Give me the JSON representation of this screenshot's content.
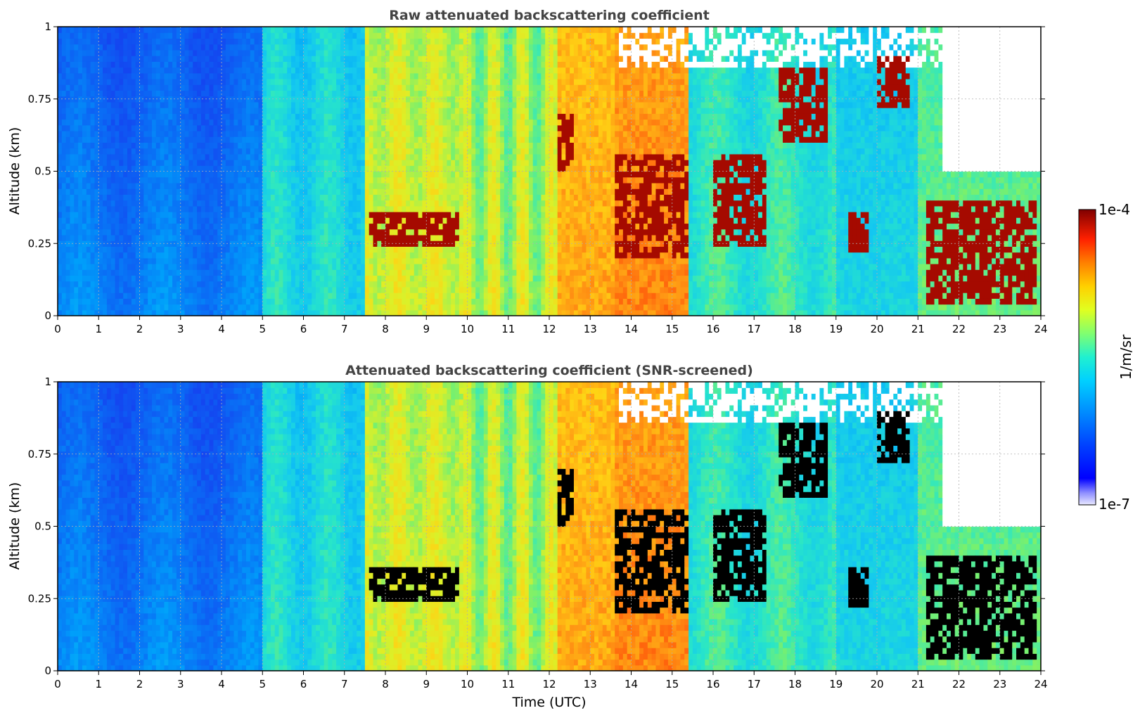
{
  "chart_data": [
    {
      "type": "heatmap",
      "title": "Raw attenuated backscattering coefficient",
      "xlabel": "",
      "ylabel": "Altitude (km)",
      "xlim": [
        0,
        24
      ],
      "ylim": [
        0,
        1
      ],
      "x_ticks": [
        "0",
        "1",
        "2",
        "3",
        "4",
        "5",
        "6",
        "7",
        "8",
        "9",
        "10",
        "11",
        "12",
        "13",
        "14",
        "15",
        "16",
        "17",
        "18",
        "19",
        "20",
        "21",
        "22",
        "23",
        "24"
      ],
      "y_ticks": [
        "0",
        "0.25",
        "0.5",
        "0.75",
        "1"
      ],
      "grid": true,
      "screened": false,
      "features": [
        {
          "t": [
            7.6,
            9.8
          ],
          "alt": [
            0.25,
            0.35
          ],
          "level": "high"
        },
        {
          "t": [
            12.2,
            12.6
          ],
          "alt": [
            0.5,
            0.7
          ],
          "level": "high"
        },
        {
          "t": [
            13.6,
            15.4
          ],
          "alt": [
            0.2,
            0.55
          ],
          "level": "high"
        },
        {
          "t": [
            16.0,
            17.3
          ],
          "alt": [
            0.25,
            0.55
          ],
          "level": "high"
        },
        {
          "t": [
            17.6,
            18.8
          ],
          "alt": [
            0.6,
            0.85
          ],
          "level": "high"
        },
        {
          "t": [
            19.3,
            19.8
          ],
          "alt": [
            0.22,
            0.35
          ],
          "level": "high"
        },
        {
          "t": [
            20.0,
            20.8
          ],
          "alt": [
            0.72,
            0.9
          ],
          "level": "high"
        },
        {
          "t": [
            21.2,
            23.9
          ],
          "alt": [
            0.05,
            0.4
          ],
          "level": "high"
        }
      ]
    },
    {
      "type": "heatmap",
      "title": "Attenuated backscattering coefficient (SNR-screened)",
      "xlabel": "Time (UTC)",
      "ylabel": "Altitude (km)",
      "xlim": [
        0,
        24
      ],
      "ylim": [
        0,
        1
      ],
      "x_ticks": [
        "0",
        "1",
        "2",
        "3",
        "4",
        "5",
        "6",
        "7",
        "8",
        "9",
        "10",
        "11",
        "12",
        "13",
        "14",
        "15",
        "16",
        "17",
        "18",
        "19",
        "20",
        "21",
        "22",
        "23",
        "24"
      ],
      "y_ticks": [
        "0",
        "0.25",
        "0.5",
        "0.75",
        "1"
      ],
      "grid": true,
      "screened": true
    }
  ],
  "colorbar": {
    "label": "1/m/sr",
    "max_label": "1e-4",
    "min_label": "1e-7",
    "scale": "log",
    "colormap": "jet",
    "masked_color": "#000000"
  },
  "colors": {
    "clear_low": "#1a6cf0",
    "clear_mid": "#22c7e8",
    "aerosol_mid": "#8fe04a",
    "aerosol_high": "#f0e020",
    "dense": "#f07a10",
    "cloud": "#8b0000",
    "no_data": "#ffffff"
  }
}
